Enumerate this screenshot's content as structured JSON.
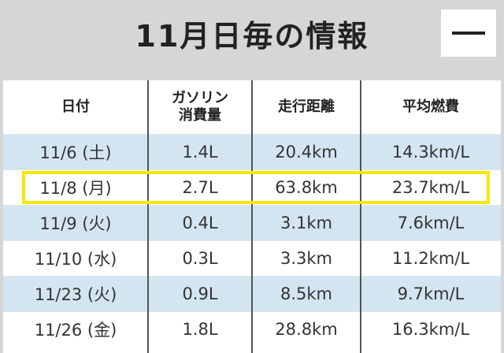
{
  "header": {
    "title": "11月日毎の情報"
  },
  "table": {
    "columns": [
      "日付",
      "ガソリン\n消費量",
      "走行距離",
      "平均燃費"
    ],
    "rows": [
      [
        "11/6 (土)",
        "1.4L",
        "20.4km",
        "14.3km/L"
      ],
      [
        "11/8 (月)",
        "2.7L",
        "63.8km",
        "23.7km/L"
      ],
      [
        "11/9 (火)",
        "0.4L",
        "3.1km",
        "7.6km/L"
      ],
      [
        "11/10 (水)",
        "0.3L",
        "3.3km",
        "11.2km/L"
      ],
      [
        "11/23 (火)",
        "0.9L",
        "8.5km",
        "9.7km/L"
      ],
      [
        "11/26 (金)",
        "1.8L",
        "28.8km",
        "16.3km/L"
      ]
    ]
  }
}
